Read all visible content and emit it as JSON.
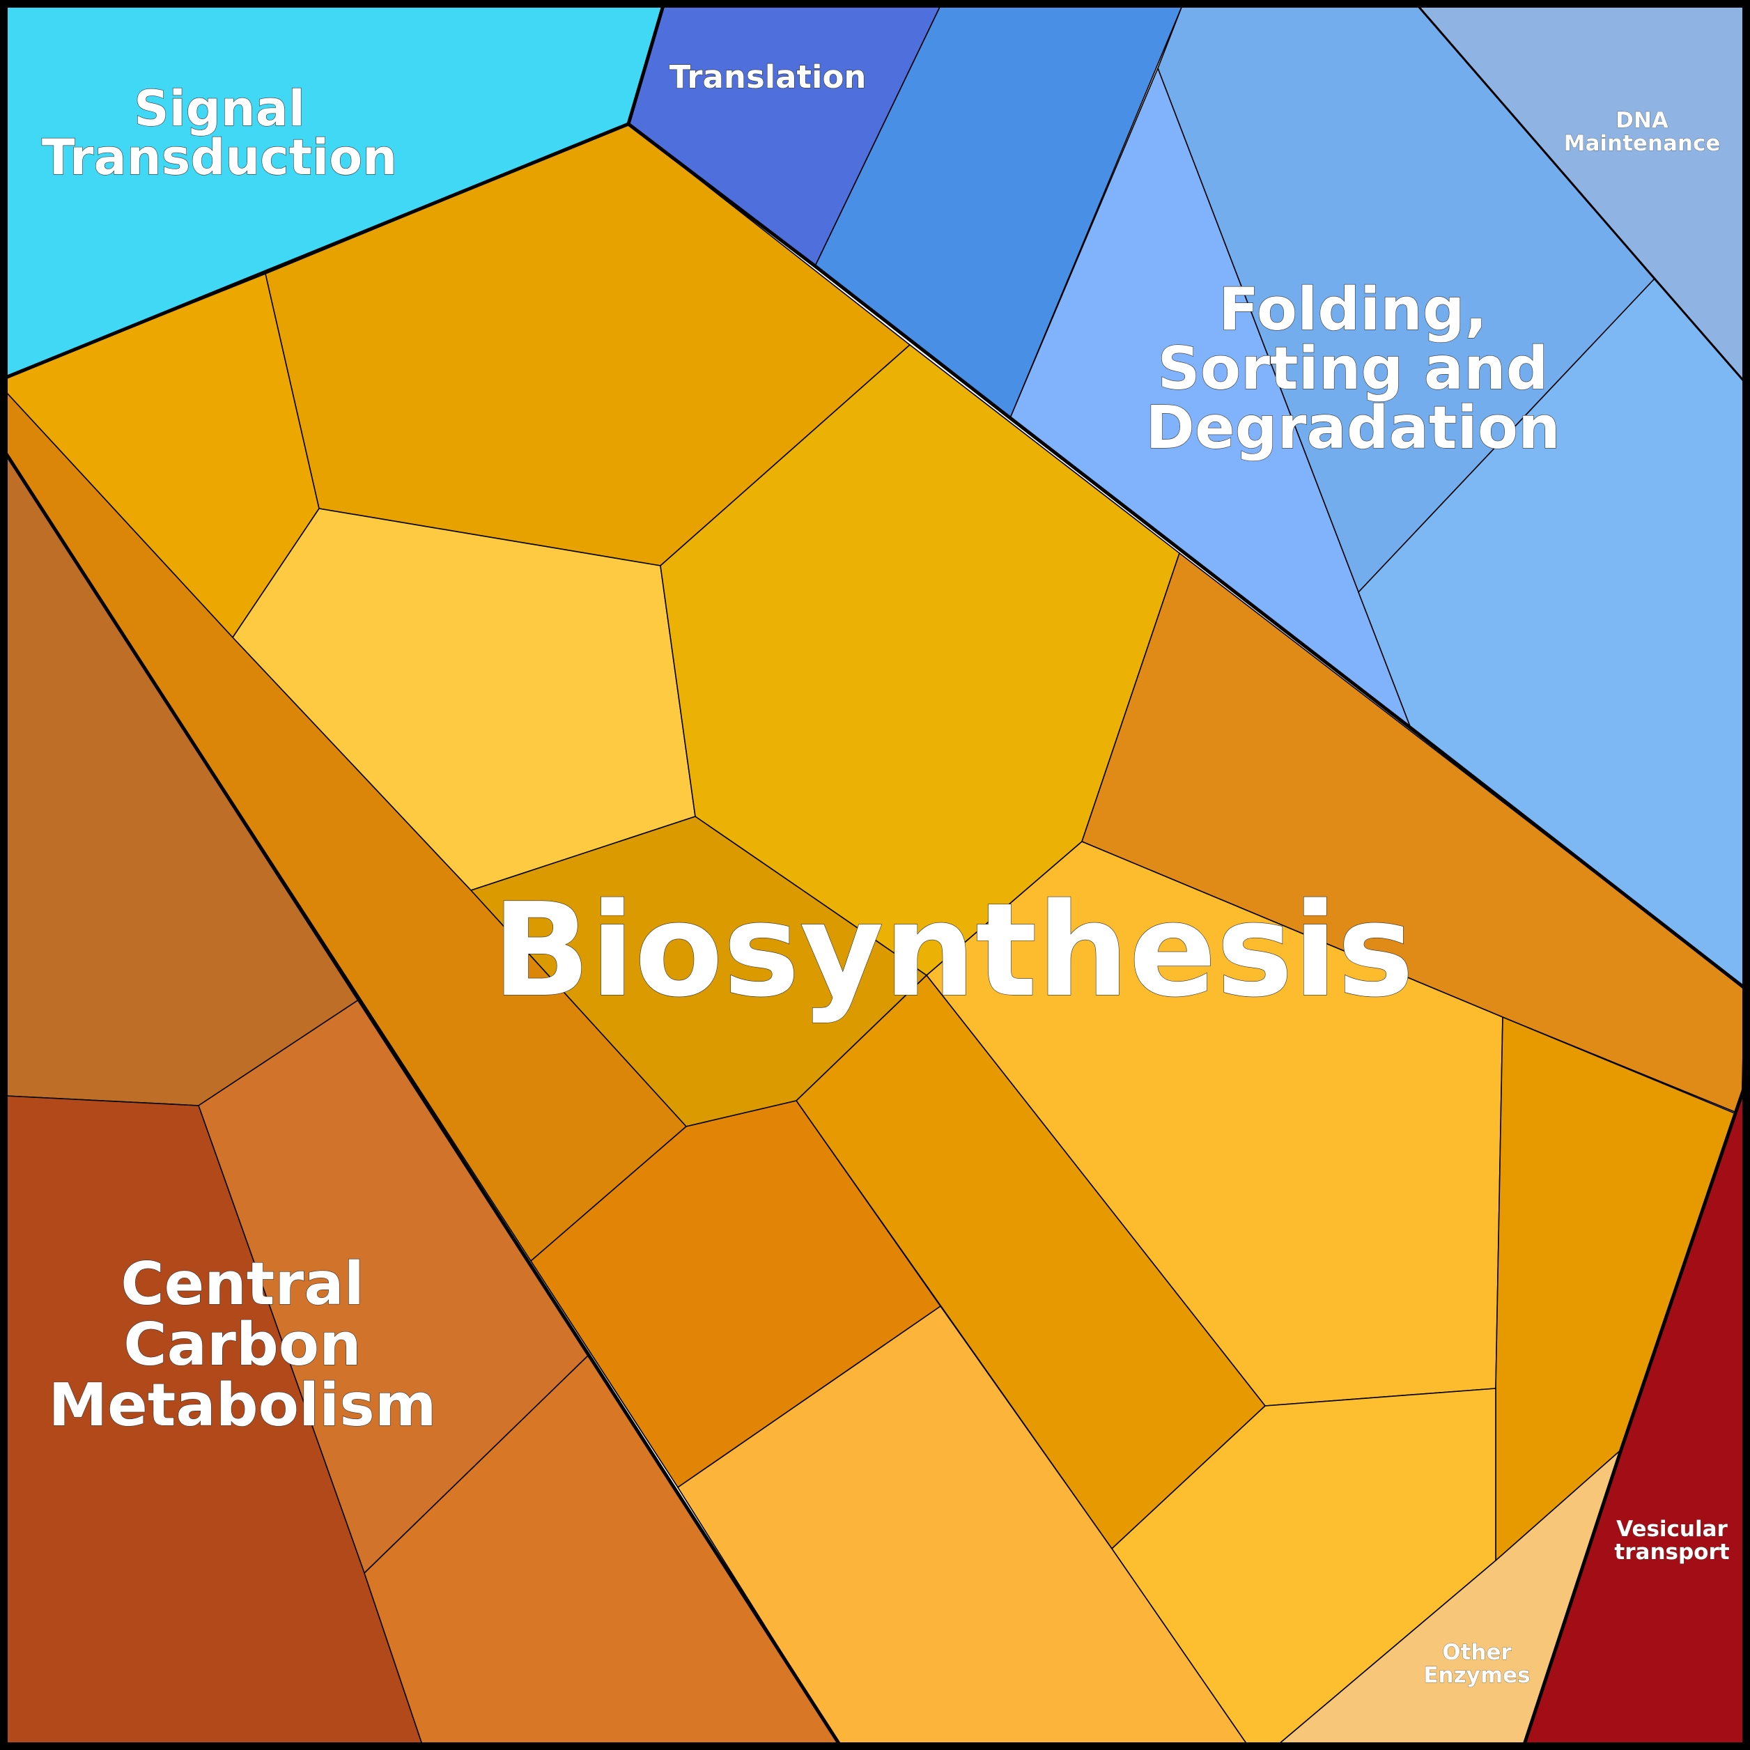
{
  "chart_data": {
    "type": "voronoi-treemap",
    "title": "",
    "groups": [
      {
        "name": "Biosynthesis",
        "color": "#E8A200",
        "label_size": "largest"
      },
      {
        "name": "Folding, Sorting and Degradation",
        "color": "#7FB4F8",
        "label_size": "large"
      },
      {
        "name": "Central Carbon Metabolism",
        "color": "#B34A1A",
        "label_size": "large"
      },
      {
        "name": "Signal Transduction",
        "color": "#40D8F5",
        "label_size": "medium"
      },
      {
        "name": "Translation",
        "color": "#4F6FDC",
        "label_size": "small"
      },
      {
        "name": "DNA Maintenance",
        "color": "#8FB3E2",
        "label_size": "smallest"
      },
      {
        "name": "Vesicular transport",
        "color": "#A30E16",
        "label_size": "smallest"
      },
      {
        "name": "Other Enzymes",
        "color": "#F8C678",
        "label_size": "smallest"
      }
    ]
  }
}
